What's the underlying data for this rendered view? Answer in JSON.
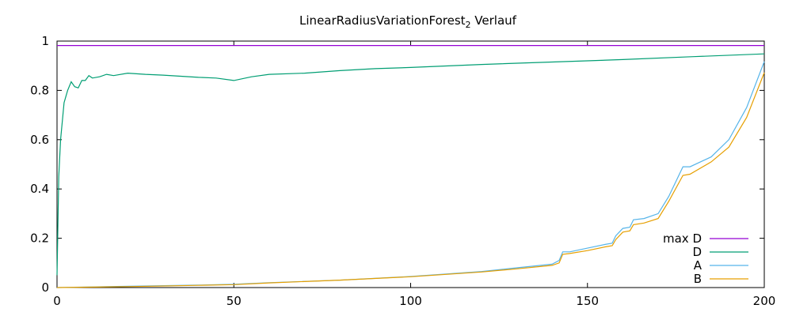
{
  "chart_data": {
    "type": "line",
    "title": "LinearRadiusVariationForest",
    "title_subscript": "2",
    "title_suffix": " Verlauf",
    "xlim": [
      0,
      200
    ],
    "ylim": [
      0,
      1
    ],
    "xticks": [
      0,
      50,
      100,
      150,
      200
    ],
    "yticks": [
      0,
      0.2,
      0.4,
      0.6,
      0.8,
      1
    ],
    "ytick_labels": [
      "0",
      "0.2",
      "0.4",
      "0.6",
      "0.8",
      "1"
    ],
    "grid": false,
    "legend_position": "bottom-right",
    "series": [
      {
        "name": "max D",
        "color": "#9400d3",
        "x": [
          0,
          200
        ],
        "y": [
          0.982,
          0.982
        ]
      },
      {
        "name": "D",
        "color": "#009e73",
        "x": [
          0,
          0.5,
          1,
          2,
          3,
          4,
          5,
          6,
          7,
          8,
          9,
          10,
          12,
          14,
          16,
          20,
          25,
          30,
          40,
          45,
          50,
          55,
          60,
          70,
          80,
          90,
          100,
          120,
          140,
          160,
          180,
          200
        ],
        "y": [
          0.05,
          0.45,
          0.6,
          0.75,
          0.8,
          0.835,
          0.815,
          0.81,
          0.84,
          0.84,
          0.86,
          0.85,
          0.855,
          0.865,
          0.86,
          0.87,
          0.865,
          0.862,
          0.853,
          0.85,
          0.84,
          0.855,
          0.865,
          0.87,
          0.88,
          0.888,
          0.893,
          0.905,
          0.915,
          0.925,
          0.937,
          0.948
        ]
      },
      {
        "name": "A",
        "color": "#56b4e9",
        "x": [
          0,
          20,
          40,
          50,
          60,
          80,
          100,
          120,
          130,
          140,
          142,
          143,
          145,
          150,
          155,
          157,
          158,
          160,
          162,
          163,
          166,
          170,
          173,
          177,
          179,
          185,
          190,
          195,
          200
        ],
        "y": [
          0,
          0.005,
          0.01,
          0.013,
          0.02,
          0.03,
          0.045,
          0.065,
          0.08,
          0.095,
          0.11,
          0.145,
          0.145,
          0.16,
          0.175,
          0.18,
          0.21,
          0.24,
          0.245,
          0.275,
          0.28,
          0.3,
          0.37,
          0.49,
          0.49,
          0.53,
          0.6,
          0.73,
          0.917
        ]
      },
      {
        "name": "B",
        "color": "#e69f00",
        "x": [
          0,
          20,
          40,
          50,
          60,
          80,
          100,
          120,
          130,
          140,
          142,
          143,
          145,
          150,
          155,
          157,
          158,
          160,
          162,
          163,
          166,
          170,
          173,
          177,
          179,
          185,
          190,
          195,
          200
        ],
        "y": [
          0,
          0.004,
          0.009,
          0.012,
          0.019,
          0.03,
          0.044,
          0.063,
          0.076,
          0.09,
          0.1,
          0.135,
          0.138,
          0.15,
          0.165,
          0.17,
          0.195,
          0.225,
          0.23,
          0.255,
          0.262,
          0.28,
          0.35,
          0.455,
          0.46,
          0.51,
          0.57,
          0.69,
          0.872
        ]
      }
    ]
  }
}
